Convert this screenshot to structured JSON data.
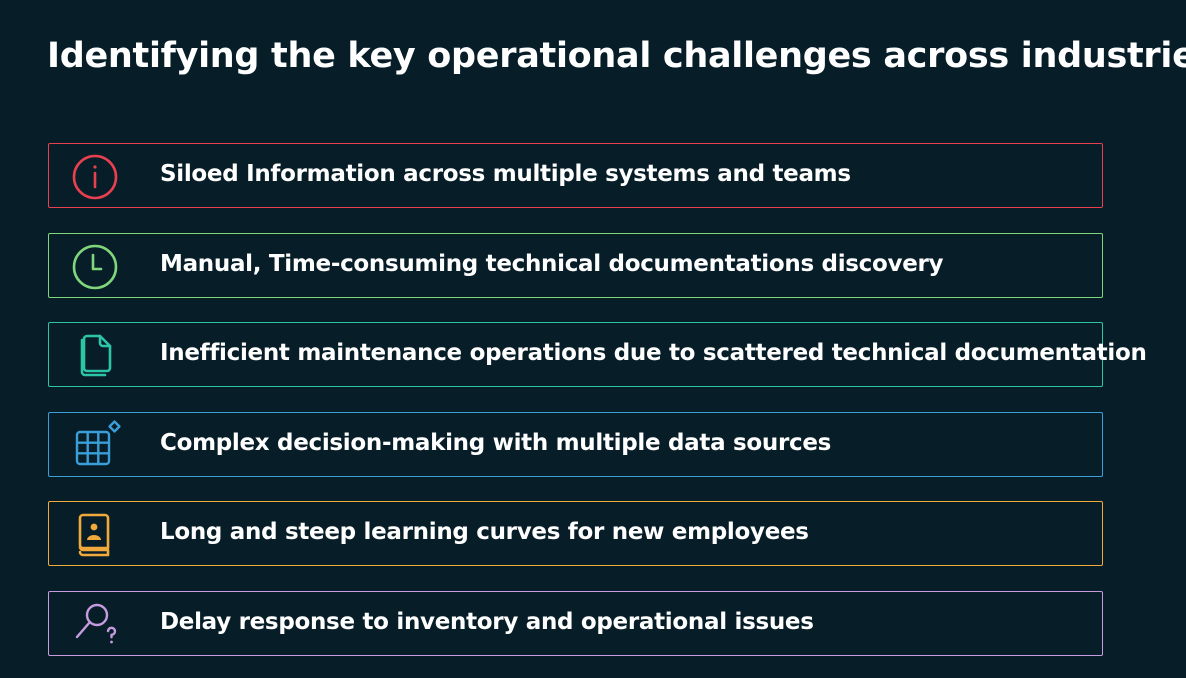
{
  "slide": {
    "title": "Identifying the key operational challenges across industries"
  },
  "challenges": [
    {
      "label": "Siloed Information across multiple systems and teams",
      "icon": "info-icon",
      "color": "#e8404f"
    },
    {
      "label": "Manual, Time-consuming technical documentations discovery",
      "icon": "clock-icon",
      "color": "#7fd67b"
    },
    {
      "label": "Inefficient maintenance operations due to scattered technical documentation",
      "icon": "documents-icon",
      "color": "#2ec4a6"
    },
    {
      "label": "Complex decision-making with multiple data sources",
      "icon": "table-grid-icon",
      "color": "#3a9fd8"
    },
    {
      "label": "Long and steep learning curves for new employees",
      "icon": "employee-handbook-icon",
      "color": "#f0a93a"
    },
    {
      "label": "Delay response to inventory and operational issues",
      "icon": "search-question-icon",
      "color": "#c79be0"
    }
  ]
}
